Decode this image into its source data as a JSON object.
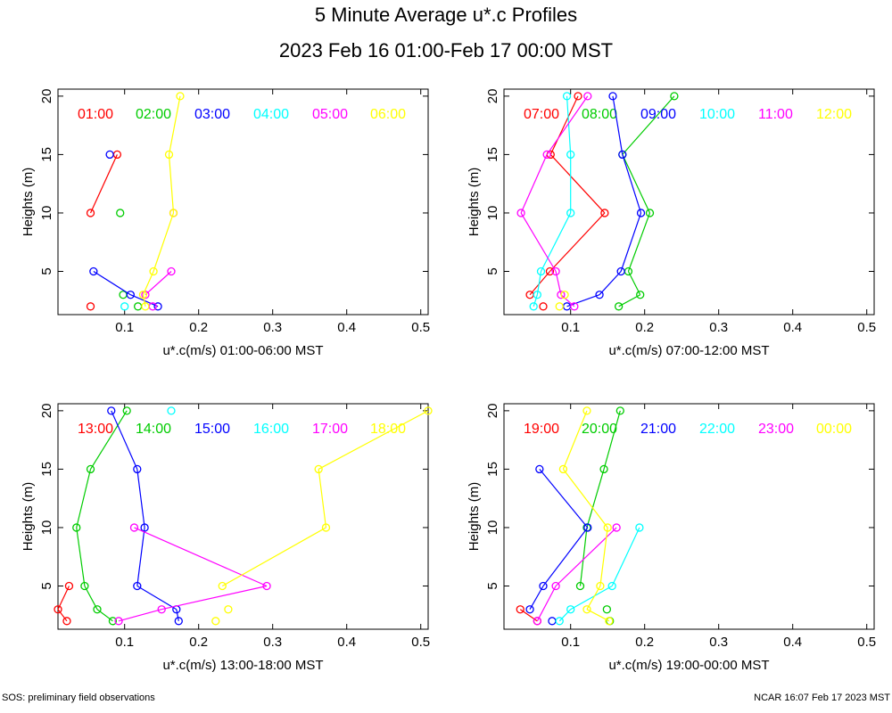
{
  "title": "5 Minute Average u*.c Profiles",
  "subtitle": "2023 Feb 16 01:00-Feb 17 00:00 MST",
  "footer_left": "SOS: preliminary field observations",
  "footer_right": "NCAR 16:07 Feb 17 2023 MST",
  "colors": [
    "#ff0000",
    "#00cc00",
    "#0000ff",
    "#00ffff",
    "#ff00ff",
    "#ffff00"
  ],
  "chart_data": [
    {
      "type": "line",
      "xlabel": "u*.c(m/s) 01:00-06:00 MST",
      "ylabel": "Heights (m)",
      "xlim": [
        0.01,
        0.51
      ],
      "ylim": [
        1.3,
        20.6
      ],
      "xticks": [
        "0.1",
        "0.2",
        "0.3",
        "0.4",
        "0.5"
      ],
      "xtick_values": [
        0.1,
        0.2,
        0.3,
        0.4,
        0.5
      ],
      "yticks": [
        "5",
        "10",
        "15",
        "20"
      ],
      "ytick_values": [
        5,
        10,
        15,
        20
      ],
      "series": [
        {
          "name": "01:00",
          "points": [
            [
              0.054,
              2
            ],
            [
              0.054,
              10
            ],
            [
              0.09,
              15
            ]
          ],
          "segments": [
            [
              1,
              2
            ]
          ]
        },
        {
          "name": "02:00",
          "points": [
            [
              0.118,
              2
            ],
            [
              0.098,
              3
            ],
            [
              0.094,
              10
            ]
          ],
          "segments": []
        },
        {
          "name": "03:00",
          "points": [
            [
              0.145,
              2
            ],
            [
              0.108,
              3
            ],
            [
              0.058,
              5
            ],
            [
              0.08,
              15
            ]
          ],
          "segments": [
            [
              0,
              1
            ],
            [
              1,
              2
            ]
          ]
        },
        {
          "name": "04:00",
          "points": [
            [
              0.1,
              2
            ]
          ],
          "segments": []
        },
        {
          "name": "05:00",
          "points": [
            [
              0.138,
              2
            ],
            [
              0.128,
              3
            ],
            [
              0.163,
              5
            ],
            [
              0.166,
              10
            ]
          ],
          "segments": [
            [
              1,
              2
            ]
          ]
        },
        {
          "name": "06:00",
          "points": [
            [
              0.128,
              2
            ],
            [
              0.125,
              3
            ],
            [
              0.139,
              5
            ],
            [
              0.166,
              10
            ],
            [
              0.16,
              15
            ],
            [
              0.175,
              20
            ]
          ],
          "segments": [
            [
              0,
              1
            ],
            [
              1,
              2
            ],
            [
              2,
              3
            ],
            [
              3,
              4
            ],
            [
              4,
              5
            ]
          ]
        }
      ]
    },
    {
      "type": "line",
      "xlabel": "u*.c(m/s) 07:00-12:00 MST",
      "ylabel": "Heights (m)",
      "xlim": [
        0.01,
        0.51
      ],
      "ylim": [
        1.3,
        20.6
      ],
      "xticks": [
        "0.1",
        "0.2",
        "0.3",
        "0.4",
        "0.5"
      ],
      "xtick_values": [
        0.1,
        0.2,
        0.3,
        0.4,
        0.5
      ],
      "yticks": [
        "5",
        "10",
        "15",
        "20"
      ],
      "ytick_values": [
        5,
        10,
        15,
        20
      ],
      "series": [
        {
          "name": "07:00",
          "points": [
            [
              0.063,
              2
            ],
            [
              0.045,
              3
            ],
            [
              0.072,
              5
            ],
            [
              0.146,
              10
            ],
            [
              0.073,
              15
            ],
            [
              0.11,
              20
            ]
          ],
          "segments": [
            [
              1,
              2
            ],
            [
              2,
              3
            ],
            [
              3,
              4
            ],
            [
              4,
              5
            ]
          ]
        },
        {
          "name": "08:00",
          "points": [
            [
              0.165,
              2
            ],
            [
              0.194,
              3
            ],
            [
              0.178,
              5
            ],
            [
              0.207,
              10
            ],
            [
              0.17,
              15
            ],
            [
              0.24,
              20
            ]
          ],
          "segments": [
            [
              0,
              1
            ],
            [
              1,
              2
            ],
            [
              2,
              3
            ],
            [
              3,
              4
            ],
            [
              4,
              5
            ]
          ]
        },
        {
          "name": "09:00",
          "points": [
            [
              0.095,
              2
            ],
            [
              0.139,
              3
            ],
            [
              0.168,
              5
            ],
            [
              0.195,
              10
            ],
            [
              0.17,
              15
            ],
            [
              0.157,
              20
            ]
          ],
          "segments": [
            [
              0,
              1
            ],
            [
              1,
              2
            ],
            [
              2,
              3
            ],
            [
              3,
              4
            ],
            [
              4,
              5
            ]
          ]
        },
        {
          "name": "10:00",
          "points": [
            [
              0.05,
              2
            ],
            [
              0.055,
              3
            ],
            [
              0.06,
              5
            ],
            [
              0.1,
              10
            ],
            [
              0.1,
              15
            ],
            [
              0.095,
              20
            ]
          ],
          "segments": [
            [
              0,
              1
            ],
            [
              1,
              2
            ],
            [
              2,
              3
            ],
            [
              3,
              4
            ],
            [
              4,
              5
            ]
          ]
        },
        {
          "name": "11:00",
          "points": [
            [
              0.105,
              2
            ],
            [
              0.087,
              3
            ],
            [
              0.08,
              5
            ],
            [
              0.033,
              10
            ],
            [
              0.068,
              15
            ],
            [
              0.123,
              20
            ]
          ],
          "segments": [
            [
              0,
              1
            ],
            [
              1,
              2
            ],
            [
              2,
              3
            ],
            [
              3,
              4
            ],
            [
              4,
              5
            ]
          ]
        },
        {
          "name": "12:00",
          "points": [
            [
              0.085,
              2
            ],
            [
              0.092,
              3
            ]
          ],
          "segments": []
        }
      ]
    },
    {
      "type": "line",
      "xlabel": "u*.c(m/s) 13:00-18:00 MST",
      "ylabel": "Heights (m)",
      "xlim": [
        0.01,
        0.51
      ],
      "ylim": [
        1.3,
        20.6
      ],
      "xticks": [
        "0.1",
        "0.2",
        "0.3",
        "0.4",
        "0.5"
      ],
      "xtick_values": [
        0.1,
        0.2,
        0.3,
        0.4,
        0.5
      ],
      "yticks": [
        "5",
        "10",
        "15",
        "20"
      ],
      "ytick_values": [
        5,
        10,
        15,
        20
      ],
      "series": [
        {
          "name": "13:00",
          "points": [
            [
              0.022,
              2
            ],
            [
              0.01,
              3
            ],
            [
              0.025,
              5
            ]
          ],
          "segments": [
            [
              0,
              1
            ],
            [
              1,
              2
            ]
          ]
        },
        {
          "name": "14:00",
          "points": [
            [
              0.084,
              2
            ],
            [
              0.063,
              3
            ],
            [
              0.046,
              5
            ],
            [
              0.035,
              10
            ],
            [
              0.054,
              15
            ],
            [
              0.103,
              20
            ]
          ],
          "segments": [
            [
              0,
              1
            ],
            [
              1,
              2
            ],
            [
              2,
              3
            ],
            [
              3,
              4
            ],
            [
              4,
              5
            ]
          ]
        },
        {
          "name": "15:00",
          "points": [
            [
              0.173,
              2
            ],
            [
              0.17,
              3
            ],
            [
              0.117,
              5
            ],
            [
              0.127,
              10
            ],
            [
              0.117,
              15
            ],
            [
              0.082,
              20
            ]
          ],
          "segments": [
            [
              0,
              1
            ],
            [
              1,
              2
            ],
            [
              2,
              3
            ],
            [
              3,
              4
            ],
            [
              4,
              5
            ]
          ]
        },
        {
          "name": "16:00",
          "points": [
            [
              0.163,
              20
            ]
          ],
          "segments": []
        },
        {
          "name": "17:00",
          "points": [
            [
              0.092,
              2
            ],
            [
              0.15,
              3
            ],
            [
              0.292,
              5
            ],
            [
              0.113,
              10
            ]
          ],
          "segments": [
            [
              0,
              1
            ],
            [
              1,
              2
            ],
            [
              2,
              3
            ]
          ]
        },
        {
          "name": "18:00",
          "points": [
            [
              0.223,
              2
            ],
            [
              0.24,
              3
            ],
            [
              0.232,
              5
            ],
            [
              0.372,
              10
            ],
            [
              0.362,
              15
            ],
            [
              0.51,
              20
            ]
          ],
          "segments": [
            [
              2,
              3
            ],
            [
              3,
              4
            ],
            [
              4,
              5
            ]
          ]
        }
      ]
    },
    {
      "type": "line",
      "xlabel": "u*.c(m/s) 19:00-00:00 MST",
      "ylabel": "Heights (m)",
      "xlim": [
        0.01,
        0.51
      ],
      "ylim": [
        1.3,
        20.6
      ],
      "xticks": [
        "0.1",
        "0.2",
        "0.3",
        "0.4",
        "0.5"
      ],
      "xtick_values": [
        0.1,
        0.2,
        0.3,
        0.4,
        0.5
      ],
      "yticks": [
        "5",
        "10",
        "15",
        "20"
      ],
      "ytick_values": [
        5,
        10,
        15,
        20
      ],
      "series": [
        {
          "name": "19:00",
          "points": [
            [
              0.055,
              2
            ],
            [
              0.032,
              3
            ]
          ],
          "segments": [
            [
              0,
              1
            ]
          ]
        },
        {
          "name": "20:00",
          "points": [
            [
              0.153,
              2
            ],
            [
              0.149,
              3
            ],
            [
              0.113,
              5
            ],
            [
              0.122,
              10
            ],
            [
              0.145,
              15
            ],
            [
              0.167,
              20
            ]
          ],
          "segments": [
            [
              2,
              3
            ],
            [
              3,
              4
            ],
            [
              4,
              5
            ]
          ]
        },
        {
          "name": "21:00",
          "points": [
            [
              0.075,
              2
            ],
            [
              0.045,
              3
            ],
            [
              0.063,
              5
            ],
            [
              0.123,
              10
            ],
            [
              0.058,
              15
            ]
          ],
          "segments": [
            [
              1,
              2
            ],
            [
              2,
              3
            ],
            [
              3,
              4
            ]
          ]
        },
        {
          "name": "22:00",
          "points": [
            [
              0.085,
              2
            ],
            [
              0.1,
              3
            ],
            [
              0.156,
              5
            ],
            [
              0.193,
              10
            ]
          ],
          "segments": [
            [
              0,
              1
            ],
            [
              1,
              2
            ],
            [
              2,
              3
            ]
          ]
        },
        {
          "name": "23:00",
          "points": [
            [
              0.055,
              2
            ],
            [
              0.08,
              5
            ],
            [
              0.162,
              10
            ]
          ],
          "segments": [
            [
              0,
              1
            ],
            [
              1,
              2
            ]
          ]
        },
        {
          "name": "00:00",
          "points": [
            [
              0.152,
              2
            ],
            [
              0.122,
              3
            ],
            [
              0.14,
              5
            ],
            [
              0.15,
              10
            ],
            [
              0.09,
              15
            ],
            [
              0.122,
              20
            ]
          ],
          "segments": [
            [
              0,
              1
            ],
            [
              1,
              2
            ],
            [
              2,
              3
            ],
            [
              3,
              4
            ],
            [
              4,
              5
            ]
          ]
        }
      ]
    }
  ]
}
